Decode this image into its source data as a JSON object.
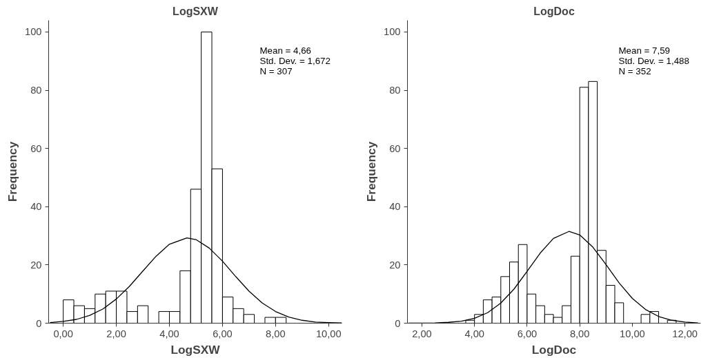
{
  "chart_data": [
    {
      "type": "histogram",
      "title": "LogSXW",
      "xlabel": "LogSXW",
      "ylabel": "Frequency",
      "color": "#ffffff",
      "bins": [
        0,
        0.4,
        0.8,
        1.2,
        1.6,
        2.0,
        2.4,
        2.8,
        3.2,
        3.6,
        4.0,
        4.4,
        4.8,
        5.2,
        5.6,
        6.0,
        6.4,
        6.8,
        7.2,
        7.6,
        8.0,
        8.4
      ],
      "values": [
        8,
        6,
        5,
        10,
        11,
        11,
        4,
        6,
        0,
        4,
        4,
        18,
        46,
        100,
        53,
        9,
        5,
        3,
        0,
        2,
        2
      ],
      "series": [
        {
          "type": "line",
          "color": "#000000",
          "x": [
            -0.5,
            0,
            0.5,
            1,
            1.5,
            2,
            2.5,
            3,
            3.5,
            4,
            4.66,
            5,
            5.5,
            6,
            6.5,
            7,
            7.5,
            8,
            8.5,
            9,
            9.5,
            10,
            10.5
          ],
          "values": [
            0.2,
            0.6,
            1.3,
            2.7,
            4.9,
            8.3,
            12.7,
            17.9,
            23.0,
            27.1,
            29.3,
            28.7,
            25.8,
            21.3,
            16.0,
            11.0,
            6.9,
            4.0,
            2.1,
            1.0,
            0.4,
            0.2,
            0.1
          ]
        }
      ],
      "xlim": [
        -0.55,
        10.5
      ],
      "ylim": [
        0,
        104
      ],
      "xticks": [
        {
          "value": 0,
          "label": "0,00"
        },
        {
          "value": 2,
          "label": "2,00"
        },
        {
          "value": 4,
          "label": "4,00"
        },
        {
          "value": 6,
          "label": "6,00"
        },
        {
          "value": 8,
          "label": "8,00"
        },
        {
          "value": 10,
          "label": "10,00"
        }
      ],
      "yticks": [
        0,
        20,
        40,
        60,
        80,
        100
      ],
      "grid": false,
      "annotations": [
        "Mean = 4,66",
        "Std. Dev. = 1,672",
        "N = 307"
      ]
    },
    {
      "type": "histogram",
      "title": "LogDoc",
      "xlabel": "LogDoc",
      "ylabel": "Frequency",
      "color": "#ffffff",
      "bins": [
        3.667,
        4,
        4.333,
        4.667,
        5,
        5.333,
        5.667,
        6,
        6.333,
        6.667,
        7,
        7.333,
        7.667,
        8,
        8.333,
        8.667,
        9,
        9.333,
        9.667,
        10,
        10.333,
        10.667,
        11,
        11.333,
        11.667
      ],
      "values": [
        1,
        3,
        8,
        9,
        16,
        21,
        27,
        10,
        6,
        3,
        2,
        6,
        23,
        81,
        83,
        25,
        13,
        7,
        0,
        0,
        3,
        4,
        0,
        1
      ],
      "series": [
        {
          "type": "line",
          "color": "#000000",
          "x": [
            1.5,
            2,
            2.5,
            3,
            3.5,
            4,
            4.5,
            5,
            5.5,
            6,
            6.5,
            7,
            7.59,
            8,
            8.5,
            9,
            9.5,
            10,
            10.5,
            11,
            11.5,
            12,
            12.5
          ],
          "values": [
            0.0,
            0.0,
            0.1,
            0.3,
            0.7,
            1.7,
            3.6,
            6.9,
            11.7,
            17.8,
            24.1,
            29.1,
            31.5,
            30.3,
            26.1,
            20.1,
            13.8,
            8.5,
            4.7,
            2.3,
            1.0,
            0.4,
            0.1
          ]
        }
      ],
      "xlim": [
        1.45,
        12.6
      ],
      "ylim": [
        0,
        104
      ],
      "xticks": [
        {
          "value": 2,
          "label": "2,00"
        },
        {
          "value": 4,
          "label": "4,00"
        },
        {
          "value": 6,
          "label": "6,00"
        },
        {
          "value": 8,
          "label": "8,00"
        },
        {
          "value": 10,
          "label": "10,00"
        },
        {
          "value": 12,
          "label": "12,00"
        }
      ],
      "yticks": [
        0,
        20,
        40,
        60,
        80,
        100
      ],
      "grid": false,
      "annotations": [
        "Mean = 7,59",
        "Std. Dev. = 1,488",
        "N = 352"
      ]
    }
  ]
}
